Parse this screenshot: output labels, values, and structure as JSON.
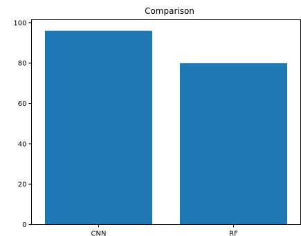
{
  "chart_data": {
    "type": "bar",
    "title": "Comparison",
    "xlabel": "",
    "ylabel": "",
    "categories": [
      "CNN",
      "RF"
    ],
    "values": [
      96,
      80
    ],
    "ylim": [
      0,
      100
    ],
    "yticks": [
      0,
      20,
      40,
      60,
      80,
      100
    ],
    "bar_color": "#1f77b4",
    "grid": false,
    "legend": null
  }
}
